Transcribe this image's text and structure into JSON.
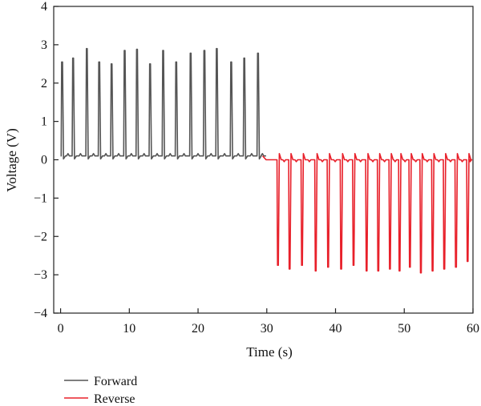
{
  "chart_data": {
    "type": "line",
    "title": "",
    "xlabel": "Time (s)",
    "ylabel": "Voltage (V)",
    "xlim": [
      -1,
      60
    ],
    "ylim": [
      -4,
      4
    ],
    "xticks": [
      0,
      10,
      20,
      30,
      40,
      50,
      60
    ],
    "yticks": [
      -4,
      -3,
      -2,
      -1,
      0,
      1,
      2,
      3,
      4
    ],
    "ytick_labels": [
      "−4",
      "−3",
      "−2",
      "−1",
      "0",
      "1",
      "2",
      "3",
      "4"
    ],
    "grid": false,
    "legend_position": "bottom-left",
    "series": [
      {
        "name": "Forward",
        "color": "#555555",
        "baseline": 0.1,
        "pulse_times": [
          0.2,
          1.8,
          3.8,
          5.6,
          7.4,
          9.3,
          11.1,
          13.0,
          14.9,
          16.8,
          18.9,
          20.9,
          22.7,
          24.8,
          26.7,
          28.7
        ],
        "pulse_peaks": [
          2.55,
          2.65,
          2.9,
          2.55,
          2.5,
          2.85,
          2.88,
          2.5,
          2.85,
          2.55,
          2.78,
          2.85,
          2.9,
          2.55,
          2.65,
          2.78
        ]
      },
      {
        "name": "Reverse",
        "color": "#e8202a",
        "baseline": 0.0,
        "pulse_times": [
          31.6,
          33.3,
          35.1,
          37.1,
          38.9,
          40.8,
          42.6,
          44.5,
          46.2,
          47.9,
          49.3,
          50.8,
          52.4,
          54.1,
          55.8,
          57.5,
          59.2
        ],
        "pulse_peaks": [
          -2.75,
          -2.85,
          -2.75,
          -2.9,
          -2.8,
          -2.85,
          -2.75,
          -2.9,
          -2.9,
          -2.85,
          -2.9,
          -2.8,
          -2.95,
          -2.9,
          -2.85,
          -2.8,
          -2.65
        ]
      }
    ]
  }
}
